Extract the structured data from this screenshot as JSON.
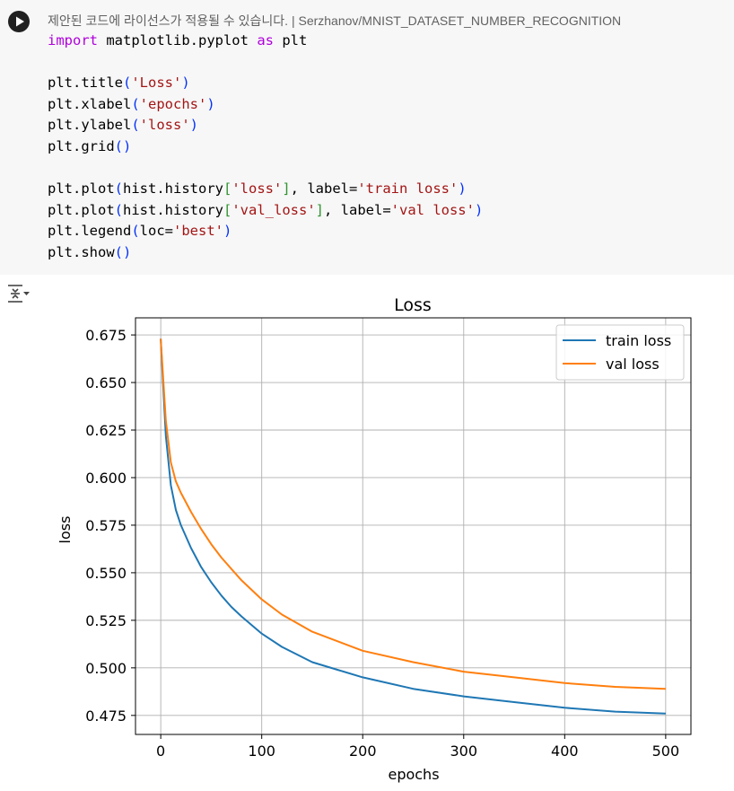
{
  "cell": {
    "run_icon": "play-circle-icon",
    "notice_text": "제안된 코드에 라이선스가 적용될 수 있습니다.",
    "notice_sep": "|",
    "notice_source": "Serzhanov/MNIST_DATASET_NUMBER_RECOGNITION",
    "code_lines": [
      [
        {
          "t": "import",
          "c": "kw"
        },
        {
          "t": " matplotlib.pyplot "
        },
        {
          "t": "as",
          "c": "kw"
        },
        {
          "t": " plt"
        }
      ],
      [],
      [
        {
          "t": "plt.title"
        },
        {
          "t": "(",
          "c": "p1"
        },
        {
          "t": "'Loss'",
          "c": "str"
        },
        {
          "t": ")",
          "c": "p1"
        }
      ],
      [
        {
          "t": "plt.xlabel"
        },
        {
          "t": "(",
          "c": "p1"
        },
        {
          "t": "'epochs'",
          "c": "str"
        },
        {
          "t": ")",
          "c": "p1"
        }
      ],
      [
        {
          "t": "plt.ylabel"
        },
        {
          "t": "(",
          "c": "p1"
        },
        {
          "t": "'loss'",
          "c": "str"
        },
        {
          "t": ")",
          "c": "p1"
        }
      ],
      [
        {
          "t": "plt.grid"
        },
        {
          "t": "()",
          "c": "p1"
        }
      ],
      [],
      [
        {
          "t": "plt.plot"
        },
        {
          "t": "(",
          "c": "p1"
        },
        {
          "t": "hist.history"
        },
        {
          "t": "[",
          "c": "p2"
        },
        {
          "t": "'loss'",
          "c": "str"
        },
        {
          "t": "]",
          "c": "p2"
        },
        {
          "t": ", label="
        },
        {
          "t": "'train loss'",
          "c": "str"
        },
        {
          "t": ")",
          "c": "p1"
        }
      ],
      [
        {
          "t": "plt.plot"
        },
        {
          "t": "(",
          "c": "p1"
        },
        {
          "t": "hist.history"
        },
        {
          "t": "[",
          "c": "p2"
        },
        {
          "t": "'val_loss'",
          "c": "str"
        },
        {
          "t": "]",
          "c": "p2"
        },
        {
          "t": ", label="
        },
        {
          "t": "'val loss'",
          "c": "str"
        },
        {
          "t": ")",
          "c": "p1"
        }
      ],
      [
        {
          "t": "plt.legend"
        },
        {
          "t": "(",
          "c": "p1"
        },
        {
          "t": "loc="
        },
        {
          "t": "'best'",
          "c": "str"
        },
        {
          "t": ")",
          "c": "p1"
        }
      ],
      [
        {
          "t": "plt.show"
        },
        {
          "t": "()",
          "c": "p1"
        }
      ]
    ]
  },
  "output": {
    "toggle_icon": "output-collapse-icon"
  },
  "colors": {
    "train": "#1f77b4",
    "val": "#ff7f0e",
    "grid": "#b0b0b0"
  },
  "chart_data": {
    "type": "line",
    "title": "Loss",
    "xlabel": "epochs",
    "ylabel": "loss",
    "xlim": [
      -25,
      525
    ],
    "ylim": [
      0.465,
      0.684
    ],
    "xticks": [
      0,
      100,
      200,
      300,
      400,
      500
    ],
    "yticks": [
      0.475,
      0.5,
      0.525,
      0.55,
      0.575,
      0.6,
      0.625,
      0.65,
      0.675
    ],
    "ytick_labels": [
      "0.475",
      "0.500",
      "0.525",
      "0.550",
      "0.575",
      "0.600",
      "0.625",
      "0.650",
      "0.675"
    ],
    "grid": true,
    "legend": "top-right",
    "series": [
      {
        "name": "train loss",
        "x": [
          0,
          5,
          10,
          15,
          20,
          30,
          40,
          50,
          60,
          70,
          80,
          100,
          120,
          150,
          175,
          200,
          250,
          300,
          350,
          400,
          450,
          500
        ],
        "y": [
          0.673,
          0.622,
          0.596,
          0.583,
          0.575,
          0.563,
          0.553,
          0.545,
          0.538,
          0.532,
          0.527,
          0.518,
          0.511,
          0.503,
          0.499,
          0.495,
          0.489,
          0.485,
          0.482,
          0.479,
          0.477,
          0.476
        ]
      },
      {
        "name": "val loss",
        "x": [
          0,
          5,
          10,
          15,
          20,
          30,
          40,
          50,
          60,
          70,
          80,
          100,
          120,
          150,
          175,
          200,
          250,
          300,
          350,
          400,
          450,
          500
        ],
        "y": [
          0.673,
          0.63,
          0.608,
          0.598,
          0.592,
          0.582,
          0.573,
          0.565,
          0.558,
          0.552,
          0.546,
          0.536,
          0.528,
          0.519,
          0.514,
          0.509,
          0.503,
          0.498,
          0.495,
          0.492,
          0.49,
          0.489
        ]
      }
    ]
  }
}
